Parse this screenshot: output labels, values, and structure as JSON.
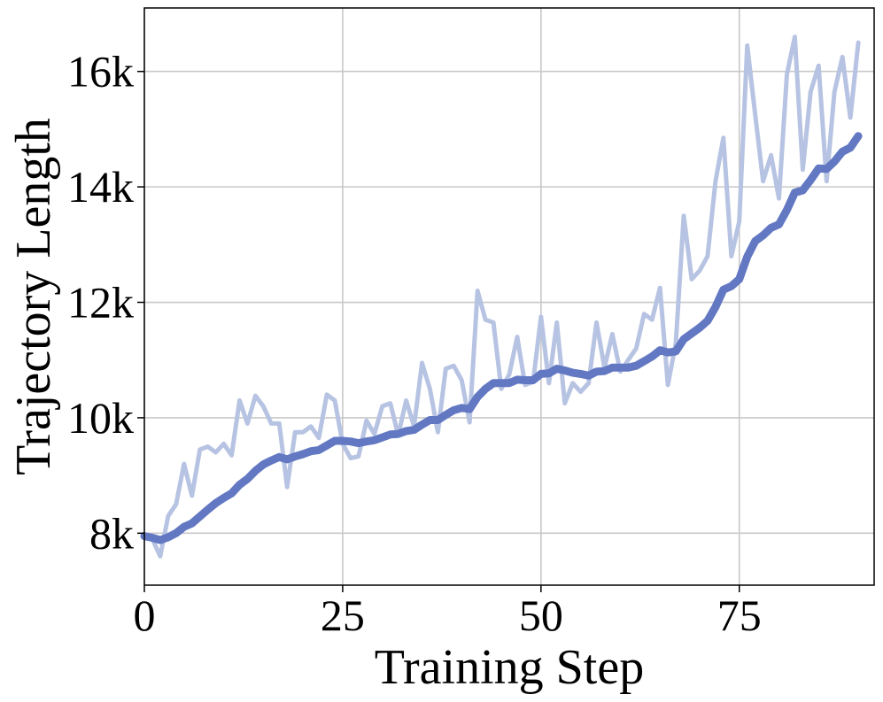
{
  "chart_data": {
    "type": "line",
    "title": "",
    "xlabel": "Training Step",
    "ylabel": "Trajectory Length",
    "xlim": [
      0,
      92
    ],
    "ylim": [
      7100,
      17100
    ],
    "x_ticks": [
      {
        "value": 0,
        "label": "0"
      },
      {
        "value": 25,
        "label": "25"
      },
      {
        "value": 50,
        "label": "50"
      },
      {
        "value": 75,
        "label": "75"
      }
    ],
    "y_ticks": [
      {
        "value": 8000,
        "label": "8k"
      },
      {
        "value": 10000,
        "label": "10k"
      },
      {
        "value": 12000,
        "label": "12k"
      },
      {
        "value": 14000,
        "label": "14k"
      },
      {
        "value": 16000,
        "label": "16k"
      }
    ],
    "grid": true,
    "legend": "none",
    "series": [
      {
        "role": "raw",
        "color": "#b7c3e2",
        "x": [
          0,
          1,
          2,
          3,
          4,
          5,
          6,
          7,
          8,
          9,
          10,
          11,
          12,
          13,
          14,
          15,
          16,
          17,
          18,
          19,
          20,
          21,
          22,
          23,
          24,
          25,
          26,
          27,
          28,
          29,
          30,
          31,
          32,
          33,
          34,
          35,
          36,
          37,
          38,
          39,
          40,
          41,
          42,
          43,
          44,
          45,
          46,
          47,
          48,
          49,
          50,
          51,
          52,
          53,
          54,
          55,
          56,
          57,
          58,
          59,
          60,
          61,
          62,
          63,
          64,
          65,
          66,
          67,
          68,
          69,
          70,
          71,
          72,
          73,
          74,
          75,
          76,
          77,
          78,
          79,
          80,
          81,
          82,
          83,
          84,
          85,
          86,
          87,
          88,
          89,
          90
        ],
        "y": [
          7950,
          7900,
          7600,
          8300,
          8500,
          9200,
          8650,
          9450,
          9500,
          9400,
          9550,
          9350,
          10300,
          9900,
          10380,
          10200,
          9900,
          9900,
          8800,
          9750,
          9750,
          9850,
          9650,
          10400,
          10300,
          9550,
          9300,
          9330,
          9950,
          9720,
          10200,
          10250,
          9700,
          10300,
          9850,
          10950,
          10500,
          9750,
          10850,
          10900,
          10650,
          9920,
          12200,
          11700,
          11650,
          10500,
          10750,
          11400,
          10570,
          10620,
          11750,
          10600,
          11650,
          10250,
          10600,
          10450,
          10600,
          11650,
          10870,
          11450,
          10800,
          11000,
          11200,
          11800,
          11700,
          12250,
          10570,
          11300,
          13500,
          12400,
          12550,
          12800,
          14100,
          14850,
          12800,
          13400,
          16450,
          15250,
          14100,
          14550,
          13800,
          15950,
          16600,
          14300,
          15650,
          16100,
          14100,
          15650,
          16250,
          15200,
          16500
        ]
      },
      {
        "role": "smoothed",
        "color": "#6378c2",
        "x": [
          0,
          1,
          2,
          3,
          4,
          5,
          6,
          7,
          8,
          9,
          10,
          11,
          12,
          13,
          14,
          15,
          16,
          17,
          18,
          19,
          20,
          21,
          22,
          23,
          24,
          25,
          26,
          27,
          28,
          29,
          30,
          31,
          32,
          33,
          34,
          35,
          36,
          37,
          38,
          39,
          40,
          41,
          42,
          43,
          44,
          45,
          46,
          47,
          48,
          49,
          50,
          51,
          52,
          53,
          54,
          55,
          56,
          57,
          58,
          59,
          60,
          61,
          62,
          63,
          64,
          65,
          66,
          67,
          68,
          69,
          70,
          71,
          72,
          73,
          74,
          75,
          76,
          77,
          78,
          79,
          80,
          81,
          82,
          83,
          84,
          85,
          86,
          87,
          88,
          89,
          90
        ],
        "y": [
          7950,
          7920,
          7880,
          7930,
          8000,
          8110,
          8170,
          8290,
          8410,
          8520,
          8610,
          8690,
          8840,
          8940,
          9080,
          9190,
          9260,
          9320,
          9280,
          9330,
          9370,
          9420,
          9440,
          9520,
          9600,
          9600,
          9590,
          9560,
          9590,
          9610,
          9660,
          9710,
          9720,
          9770,
          9790,
          9880,
          9960,
          9960,
          10050,
          10130,
          10170,
          10150,
          10360,
          10500,
          10600,
          10600,
          10600,
          10660,
          10650,
          10650,
          10760,
          10770,
          10850,
          10820,
          10780,
          10760,
          10730,
          10800,
          10810,
          10870,
          10870,
          10870,
          10900,
          10980,
          11060,
          11170,
          11130,
          11150,
          11360,
          11460,
          11560,
          11680,
          11920,
          12220,
          12280,
          12400,
          12790,
          13060,
          13160,
          13290,
          13350,
          13600,
          13900,
          13940,
          14120,
          14320,
          14310,
          14440,
          14610,
          14680,
          14880
        ]
      }
    ]
  }
}
